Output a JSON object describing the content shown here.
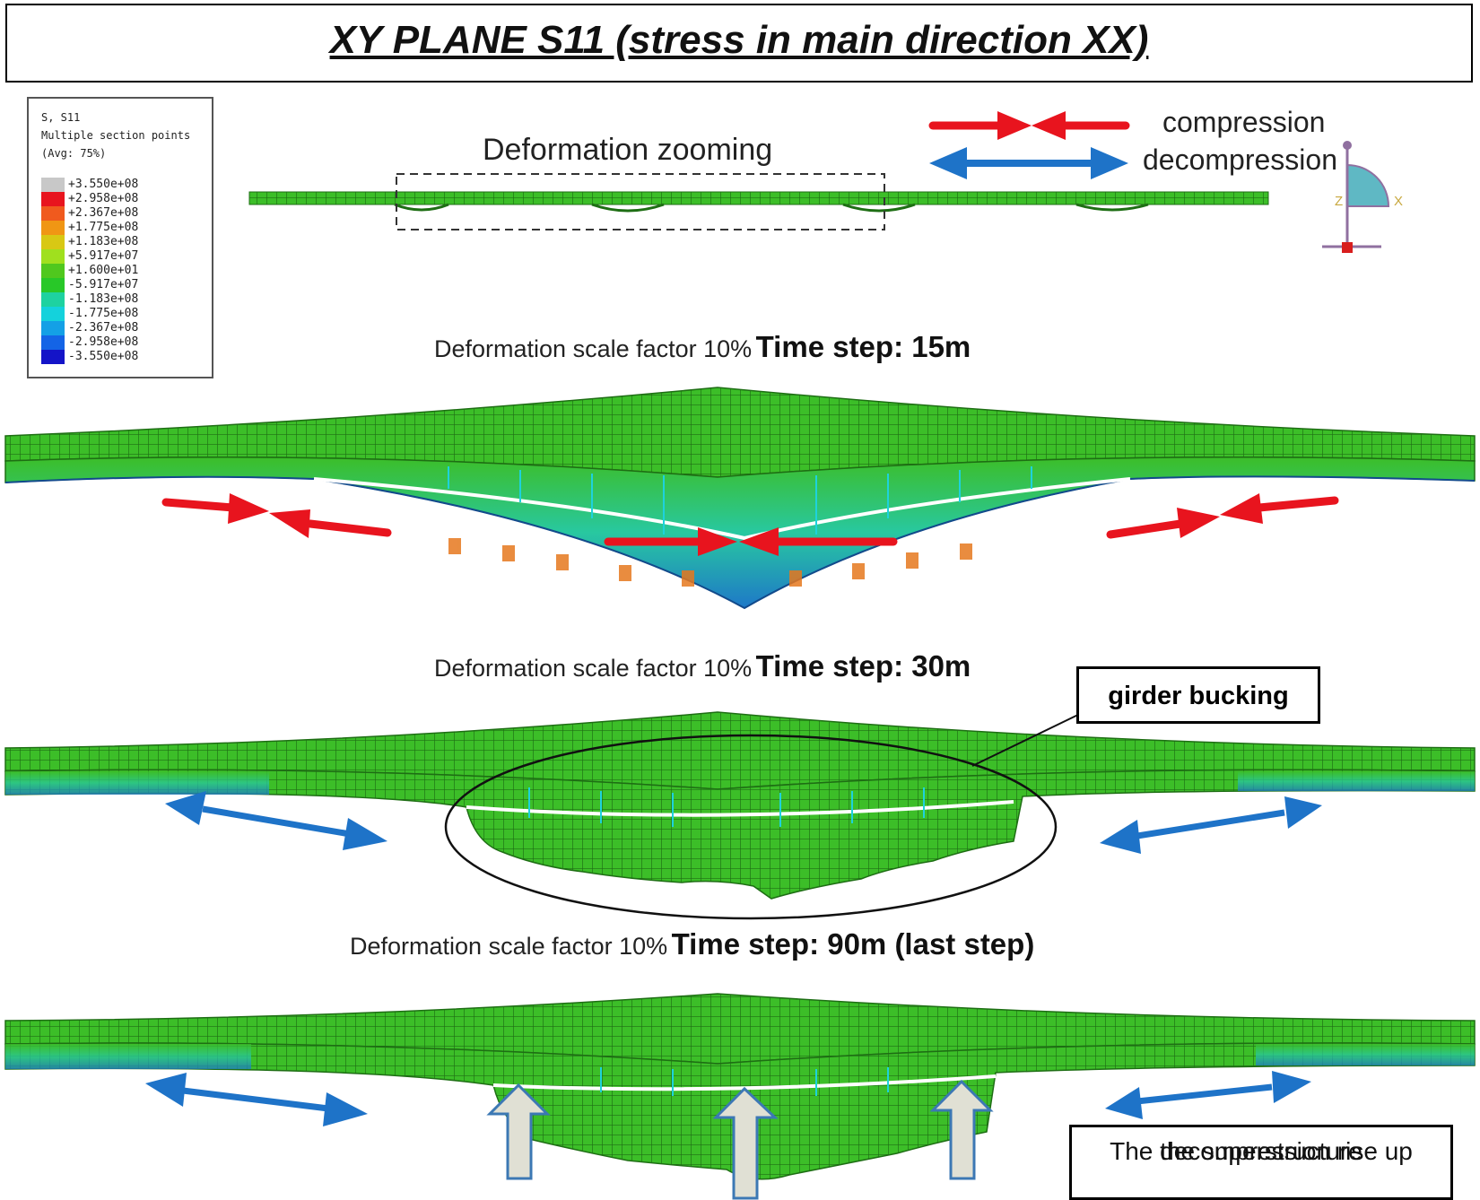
{
  "title": "XY PLANE S11 (stress in main direction XX)",
  "legend": {
    "variable": "S, S11",
    "subtitle": "Multiple section points",
    "averaging": "(Avg: 75%)",
    "values": [
      "+3.550e+08",
      "+2.958e+08",
      "+2.367e+08",
      "+1.775e+08",
      "+1.183e+08",
      "+5.917e+07",
      "+1.600e+01",
      "-5.917e+07",
      "-1.183e+08",
      "-1.775e+08",
      "-2.367e+08",
      "-2.958e+08",
      "-3.550e+08"
    ],
    "colors": [
      "#c8c8c8",
      "#e8141e",
      "#f05a1e",
      "#f09614",
      "#d8c814",
      "#a0e01e",
      "#50c81e",
      "#28c828",
      "#1ed2a0",
      "#14d2dc",
      "#14a0e6",
      "#1464e6",
      "#1414c8"
    ]
  },
  "key": {
    "compression_label": "compression",
    "decompression_label": "decompression",
    "compression_color": "#e8141e",
    "decompression_color": "#1e73c8"
  },
  "zoom_label": "Deformation zooming",
  "axis": {
    "x_label": "X",
    "z_label": "Z"
  },
  "steps": [
    {
      "prefix": "Deformation scale factor 10%",
      "step": "Time step: 15m"
    },
    {
      "prefix": "Deformation scale factor 10%",
      "step": "Time step: 30m"
    },
    {
      "prefix": "Deformation scale factor 10%",
      "step": "Time step: 90m (last step)"
    }
  ],
  "callouts": {
    "girder": "girder bucking",
    "rise_line1": "The decompression rise up",
    "rise_line2": "the superstructure"
  },
  "colors": {
    "mesh_green": "#3cbe28",
    "mesh_dark": "#1e6e14",
    "mesh_cyan": "#1ea8b4",
    "rise_arrow_fill": "#e0e0d4",
    "rise_arrow_stroke": "#3c78b4"
  }
}
